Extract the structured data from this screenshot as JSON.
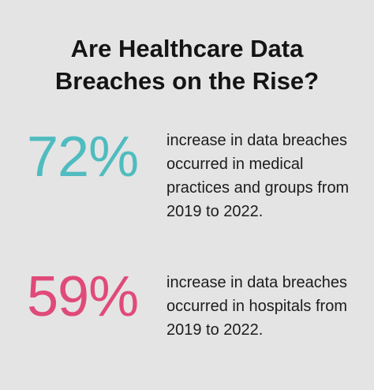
{
  "title": {
    "line1": "Are Healthcare Data",
    "line2": "Breaches on the Rise?"
  },
  "stats": [
    {
      "value": "72%",
      "color": "#4fbcbf",
      "description": "increase in data breaches occurred in medical practices and groups from 2019 to 2022."
    },
    {
      "value": "59%",
      "color": "#e04a79",
      "description": "increase in data breaches occurred in hospitals from 2019 to 2022."
    }
  ]
}
